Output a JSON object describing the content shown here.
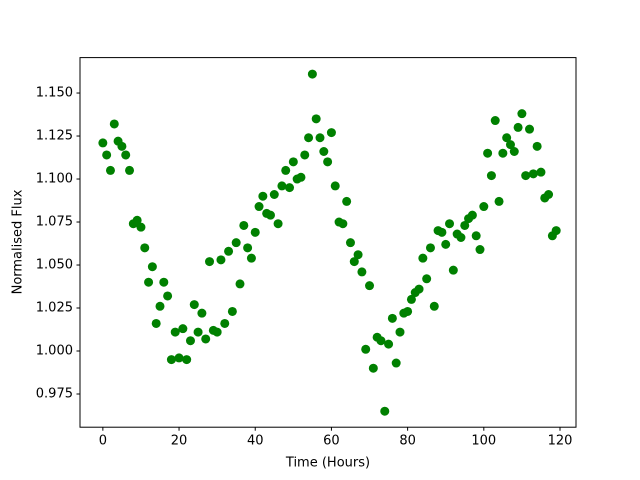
{
  "chart_data": {
    "type": "scatter",
    "x_label": "Time (Hours)",
    "y_label": "Normalised Flux",
    "color": "#008000",
    "x": [
      0,
      1,
      2,
      3,
      4,
      5,
      6,
      7,
      8,
      9,
      10,
      11,
      12,
      13,
      14,
      15,
      16,
      17,
      18,
      19,
      20,
      21,
      22,
      23,
      24,
      25,
      26,
      27,
      28,
      29,
      30,
      31,
      32,
      33,
      34,
      35,
      36,
      37,
      38,
      39,
      40,
      41,
      42,
      43,
      44,
      45,
      46,
      47,
      48,
      49,
      50,
      51,
      52,
      53,
      54,
      55,
      56,
      57,
      58,
      59,
      60,
      61,
      62,
      63,
      64,
      65,
      66,
      67,
      68,
      69,
      70,
      71,
      72,
      73,
      74,
      75,
      76,
      77,
      78,
      79,
      80,
      81,
      82,
      83,
      84,
      85,
      86,
      87,
      88,
      89,
      90,
      91,
      92,
      93,
      94,
      95,
      96,
      97,
      98,
      99,
      100,
      101,
      102,
      103,
      104,
      105,
      106,
      107,
      108,
      109,
      110,
      111,
      112,
      113,
      114,
      115,
      116,
      117,
      118,
      119
    ],
    "y": [
      1.121,
      1.114,
      1.105,
      1.132,
      1.122,
      1.119,
      1.114,
      1.105,
      1.074,
      1.076,
      1.072,
      1.06,
      1.04,
      1.049,
      1.016,
      1.026,
      1.04,
      1.032,
      0.995,
      1.011,
      0.996,
      1.013,
      0.995,
      1.006,
      1.027,
      1.011,
      1.022,
      1.007,
      1.052,
      1.012,
      1.011,
      1.053,
      1.016,
      1.058,
      1.023,
      1.063,
      1.039,
      1.073,
      1.06,
      1.054,
      1.069,
      1.084,
      1.09,
      1.08,
      1.079,
      1.091,
      1.074,
      1.096,
      1.105,
      1.095,
      1.11,
      1.1,
      1.101,
      1.114,
      1.124,
      1.161,
      1.135,
      1.124,
      1.116,
      1.11,
      1.127,
      1.096,
      1.075,
      1.074,
      1.087,
      1.063,
      1.052,
      1.056,
      1.046,
      1.001,
      1.038,
      0.99,
      1.008,
      1.006,
      0.965,
      1.004,
      1.019,
      0.993,
      1.011,
      1.022,
      1.023,
      1.03,
      1.034,
      1.036,
      1.054,
      1.042,
      1.06,
      1.026,
      1.07,
      1.069,
      1.062,
      1.074,
      1.047,
      1.068,
      1.066,
      1.073,
      1.077,
      1.079,
      1.067,
      1.059,
      1.084,
      1.115,
      1.102,
      1.134,
      1.087,
      1.115,
      1.124,
      1.12,
      1.116,
      1.13,
      1.138,
      1.102,
      1.129,
      1.103,
      1.119,
      1.104,
      1.089,
      1.091,
      1.067,
      1.07
    ],
    "xlim": [
      -6,
      124.2
    ],
    "ylim": [
      0.9557,
      1.1706
    ],
    "xticks": [
      0,
      20,
      40,
      60,
      80,
      100,
      120
    ],
    "yticks": [
      0.975,
      {
        "value": 1.0,
        "label": "1.000"
      },
      1.025,
      {
        "value": 1.05,
        "label": "1.050"
      },
      1.075,
      {
        "value": 1.1,
        "label": "1.100"
      },
      1.125,
      {
        "value": 1.15,
        "label": "1.150"
      }
    ]
  }
}
